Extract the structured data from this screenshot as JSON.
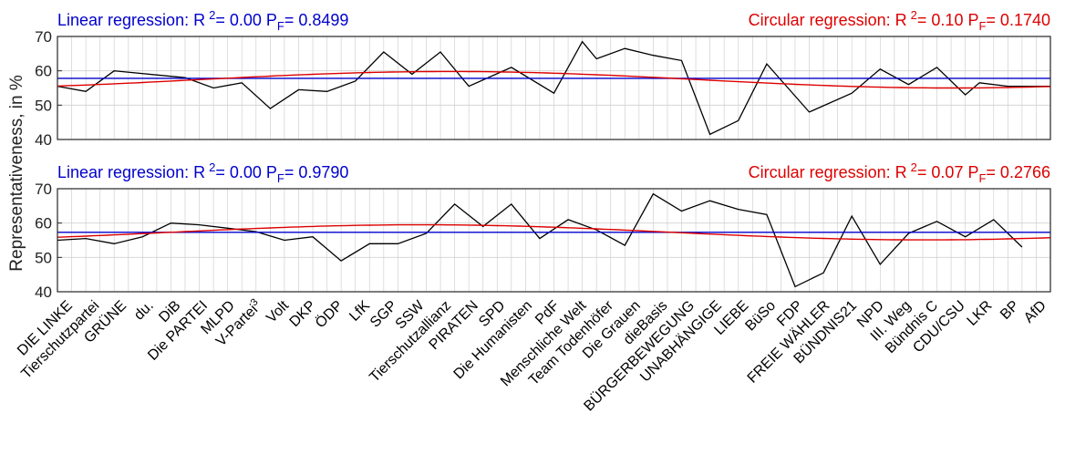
{
  "figure": {
    "ylabel": "Representativeness, in %",
    "colors": {
      "data": "#000000",
      "linear": "#0000cc",
      "circular": "#dd0000",
      "grid": "#d0d0d0",
      "frame": "#262626"
    }
  },
  "chart_data": [
    {
      "type": "line",
      "ylim": [
        40,
        70
      ],
      "yticks": [
        40,
        50,
        60,
        70
      ],
      "grid": true,
      "linear_label": {
        "text": "Linear regression: R",
        "sup": "2",
        "mid": "= 0.00  P",
        "sub": "F",
        "tail": "= 0.8499"
      },
      "circular_label": {
        "text": "Circular regression: R",
        "sup": "2",
        "mid": "= 0.10  P",
        "sub": "F",
        "tail": "= 0.1740"
      },
      "series": [
        {
          "x": [
            0,
            2,
            4,
            9,
            11,
            13,
            15,
            17,
            19,
            21,
            23,
            25,
            27,
            29,
            32,
            35,
            37,
            38,
            40,
            42,
            44,
            46,
            48,
            50,
            53,
            56,
            58,
            60,
            62,
            64,
            65,
            67,
            69,
            70
          ],
          "values": [
            55.5,
            54,
            60,
            58,
            55,
            56.5,
            49,
            54.5,
            54,
            57,
            65.5,
            59,
            65.5,
            55.5,
            61,
            53.5,
            68.5,
            63.5,
            66.5,
            64.5,
            63,
            41.5,
            45.5,
            62,
            48,
            53.5,
            60.5,
            56,
            61,
            53,
            56.5,
            55.5,
            55.5,
            55.5
          ]
        }
      ],
      "linear_fit": {
        "x": [
          0,
          70
        ],
        "values": [
          57.8,
          57.8
        ]
      },
      "circular_fit": {
        "mean": 57.4,
        "amplitude": 2.4,
        "phase_deg": 50
      }
    },
    {
      "type": "line",
      "ylim": [
        40,
        70
      ],
      "yticks": [
        40,
        50,
        60,
        70
      ],
      "grid": true,
      "linear_label": {
        "text": "Linear regression: R",
        "sup": "2",
        "mid": "= 0.00  P",
        "sub": "F",
        "tail": "= 0.9790"
      },
      "circular_label": {
        "text": "Circular regression: R",
        "sup": "2",
        "mid": "= 0.07  P",
        "sub": "F",
        "tail": "= 0.2766"
      },
      "series": [
        {
          "x": [
            0,
            2,
            4,
            6,
            8,
            10,
            12,
            14,
            16,
            18,
            20,
            22,
            24,
            26,
            28,
            30,
            32,
            34,
            36,
            38,
            40,
            42,
            44,
            46,
            48,
            50,
            52,
            54,
            56,
            58,
            60,
            62,
            64,
            66,
            68
          ],
          "values": [
            55,
            55.5,
            54,
            56,
            60,
            59.5,
            58.5,
            57.5,
            55,
            56,
            49,
            54,
            54,
            57,
            65.5,
            59,
            65.5,
            55.5,
            61,
            58,
            53.5,
            68.5,
            63.5,
            66.5,
            64,
            62.5,
            41.5,
            45.5,
            62,
            48,
            57,
            60.5,
            56,
            61,
            53
          ]
        }
      ],
      "circular_fit": {
        "mean": 57.3,
        "amplitude": 2.2,
        "phase_deg": 40
      }
    }
  ],
  "categories": [
    {
      "label": "DIE LINKE",
      "sup": ""
    },
    {
      "label": "Tierschutzpartei",
      "sup": ""
    },
    {
      "label": "GRÜNE",
      "sup": ""
    },
    {
      "label": "du.",
      "sup": ""
    },
    {
      "label": "DiB",
      "sup": ""
    },
    {
      "label": "Die PARTEI",
      "sup": ""
    },
    {
      "label": "MLPD",
      "sup": ""
    },
    {
      "label": "V-Partei",
      "sup": "3"
    },
    {
      "label": "Volt",
      "sup": ""
    },
    {
      "label": "DKP",
      "sup": ""
    },
    {
      "label": "ÖDP",
      "sup": ""
    },
    {
      "label": "LfK",
      "sup": ""
    },
    {
      "label": "SGP",
      "sup": ""
    },
    {
      "label": "SSW",
      "sup": ""
    },
    {
      "label": "Tierschutzallianz",
      "sup": ""
    },
    {
      "label": "PIRATEN",
      "sup": ""
    },
    {
      "label": "SPD",
      "sup": ""
    },
    {
      "label": "Die Humanisten",
      "sup": ""
    },
    {
      "label": "PdF",
      "sup": ""
    },
    {
      "label": "Menschliche Welt",
      "sup": ""
    },
    {
      "label": "Team Todenhöfer",
      "sup": ""
    },
    {
      "label": "Die Grauen",
      "sup": ""
    },
    {
      "label": "dieBasis",
      "sup": ""
    },
    {
      "label": "BÜRGERBEWEGUNG",
      "sup": ""
    },
    {
      "label": "UNABHÄNGIGE",
      "sup": ""
    },
    {
      "label": "LIEBE",
      "sup": ""
    },
    {
      "label": "BüSo",
      "sup": ""
    },
    {
      "label": "FDP",
      "sup": ""
    },
    {
      "label": "FREIE WÄHLER",
      "sup": ""
    },
    {
      "label": "BÜNDNIS21",
      "sup": ""
    },
    {
      "label": "NPD",
      "sup": ""
    },
    {
      "label": "III. Weg",
      "sup": ""
    },
    {
      "label": "Bündnis C",
      "sup": ""
    },
    {
      "label": "CDU/CSU",
      "sup": ""
    },
    {
      "label": "LKR",
      "sup": ""
    },
    {
      "label": "BP",
      "sup": ""
    },
    {
      "label": "AfD",
      "sup": ""
    }
  ]
}
